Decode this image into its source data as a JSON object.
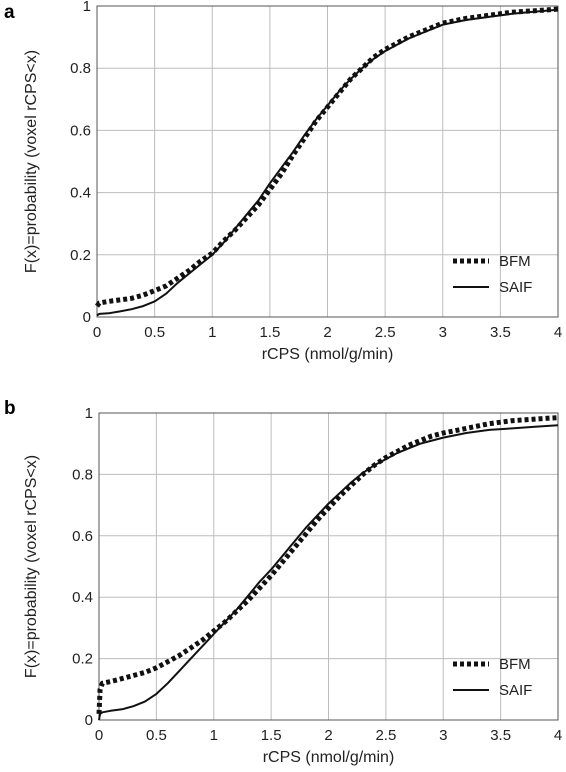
{
  "chart_data": [
    {
      "type": "line",
      "panel_label": "a",
      "xlabel": "rCPS (nmol/g/min)",
      "ylabel": "F(x)=probability (voxel rCPS<x)",
      "xlim": [
        0,
        4
      ],
      "ylim": [
        0,
        1
      ],
      "xticks": [
        "0",
        "0.5",
        "1",
        "1.5",
        "2",
        "2.5",
        "3",
        "3.5",
        "4"
      ],
      "yticks": [
        "0",
        "0.2",
        "0.4",
        "0.6",
        "0.8",
        "1"
      ],
      "grid": true,
      "legend_position": "bottom-right",
      "series": [
        {
          "name": "BFM",
          "style": "dotted",
          "x": [
            0,
            0.02,
            0.1,
            0.2,
            0.3,
            0.4,
            0.5,
            0.6,
            0.7,
            0.8,
            0.9,
            1.0,
            1.1,
            1.2,
            1.3,
            1.4,
            1.5,
            1.6,
            1.7,
            1.8,
            1.9,
            2.0,
            2.1,
            2.2,
            2.3,
            2.4,
            2.5,
            2.6,
            2.7,
            2.8,
            2.9,
            3.0,
            3.2,
            3.4,
            3.6,
            3.8,
            4.0
          ],
          "y": [
            0.035,
            0.045,
            0.05,
            0.055,
            0.06,
            0.07,
            0.085,
            0.1,
            0.125,
            0.15,
            0.18,
            0.205,
            0.245,
            0.28,
            0.32,
            0.36,
            0.41,
            0.46,
            0.52,
            0.575,
            0.63,
            0.675,
            0.72,
            0.765,
            0.8,
            0.835,
            0.86,
            0.88,
            0.9,
            0.915,
            0.93,
            0.945,
            0.96,
            0.97,
            0.98,
            0.985,
            0.99
          ]
        },
        {
          "name": "SAIF",
          "style": "solid",
          "x": [
            0,
            0.02,
            0.1,
            0.2,
            0.3,
            0.4,
            0.5,
            0.6,
            0.7,
            0.8,
            0.9,
            1.0,
            1.1,
            1.2,
            1.3,
            1.4,
            1.5,
            1.6,
            1.7,
            1.8,
            1.9,
            2.0,
            2.1,
            2.2,
            2.3,
            2.4,
            2.5,
            2.6,
            2.7,
            2.8,
            2.9,
            3.0,
            3.2,
            3.4,
            3.6,
            3.8,
            4.0
          ],
          "y": [
            0.005,
            0.01,
            0.012,
            0.018,
            0.025,
            0.035,
            0.05,
            0.075,
            0.11,
            0.14,
            0.17,
            0.2,
            0.24,
            0.285,
            0.33,
            0.375,
            0.43,
            0.48,
            0.53,
            0.585,
            0.635,
            0.68,
            0.725,
            0.765,
            0.8,
            0.83,
            0.855,
            0.875,
            0.895,
            0.91,
            0.925,
            0.94,
            0.955,
            0.965,
            0.975,
            0.982,
            0.988
          ]
        }
      ]
    },
    {
      "type": "line",
      "panel_label": "b",
      "xlabel": "rCPS (nmol/g/min)",
      "ylabel": "F(x)=probability (voxel rCPS<x)",
      "xlim": [
        0,
        4
      ],
      "ylim": [
        0,
        1
      ],
      "xticks": [
        "0",
        "0.5",
        "1",
        "1.5",
        "2",
        "2.5",
        "3",
        "3.5",
        "4"
      ],
      "yticks": [
        "0",
        "0.2",
        "0.4",
        "0.6",
        "0.8",
        "1"
      ],
      "grid": true,
      "legend_position": "bottom-right",
      "series": [
        {
          "name": "BFM",
          "style": "dotted",
          "x": [
            0,
            0.01,
            0.03,
            0.1,
            0.2,
            0.3,
            0.4,
            0.5,
            0.6,
            0.7,
            0.8,
            0.9,
            1.0,
            1.1,
            1.2,
            1.3,
            1.4,
            1.5,
            1.6,
            1.7,
            1.8,
            1.9,
            2.0,
            2.1,
            2.2,
            2.3,
            2.4,
            2.5,
            2.6,
            2.7,
            2.8,
            2.9,
            3.0,
            3.2,
            3.4,
            3.6,
            3.8,
            4.0
          ],
          "y": [
            0.02,
            0.1,
            0.12,
            0.125,
            0.135,
            0.145,
            0.155,
            0.17,
            0.19,
            0.21,
            0.235,
            0.26,
            0.29,
            0.32,
            0.355,
            0.39,
            0.43,
            0.47,
            0.515,
            0.56,
            0.605,
            0.65,
            0.69,
            0.73,
            0.765,
            0.8,
            0.83,
            0.855,
            0.875,
            0.895,
            0.91,
            0.925,
            0.935,
            0.95,
            0.965,
            0.975,
            0.98,
            0.985
          ]
        },
        {
          "name": "SAIF",
          "style": "solid",
          "x": [
            0,
            0.01,
            0.03,
            0.1,
            0.2,
            0.3,
            0.4,
            0.5,
            0.6,
            0.7,
            0.8,
            0.9,
            1.0,
            1.1,
            1.2,
            1.3,
            1.4,
            1.5,
            1.6,
            1.7,
            1.8,
            1.9,
            2.0,
            2.1,
            2.2,
            2.3,
            2.4,
            2.5,
            2.6,
            2.7,
            2.8,
            2.9,
            3.0,
            3.2,
            3.4,
            3.6,
            3.8,
            4.0
          ],
          "y": [
            0.0,
            0.02,
            0.025,
            0.03,
            0.035,
            0.045,
            0.06,
            0.085,
            0.12,
            0.16,
            0.2,
            0.24,
            0.28,
            0.32,
            0.36,
            0.405,
            0.45,
            0.49,
            0.535,
            0.58,
            0.625,
            0.665,
            0.705,
            0.74,
            0.775,
            0.805,
            0.83,
            0.85,
            0.87,
            0.885,
            0.9,
            0.91,
            0.92,
            0.935,
            0.945,
            0.95,
            0.955,
            0.96
          ]
        }
      ]
    }
  ]
}
